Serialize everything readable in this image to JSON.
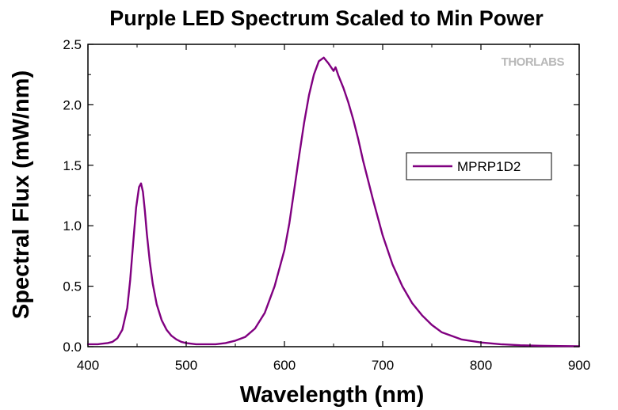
{
  "chart_data": {
    "type": "line",
    "title": "Purple LED Spectrum Scaled to Min Power",
    "xlabel": "Wavelength (nm)",
    "ylabel": "Spectral Flux (mW/nm)",
    "xlim": [
      400,
      900
    ],
    "ylim": [
      0,
      2.5
    ],
    "xticks": [
      400,
      500,
      600,
      700,
      800,
      900
    ],
    "yticks": [
      0.0,
      0.5,
      1.0,
      1.5,
      2.0,
      2.5
    ],
    "xtick_labels": [
      "400",
      "500",
      "600",
      "700",
      "800",
      "900"
    ],
    "ytick_labels": [
      "0.0",
      "0.5",
      "1.0",
      "1.5",
      "2.0",
      "2.5"
    ],
    "grid": false,
    "legend_position": "right",
    "watermark": "THORLABS",
    "series": [
      {
        "name": "MPRP1D2",
        "color": "#800080",
        "x": [
          400,
          410,
          420,
          425,
          430,
          435,
          440,
          443,
          446,
          449,
          452,
          454,
          456,
          458,
          460,
          463,
          466,
          470,
          475,
          480,
          485,
          490,
          495,
          500,
          510,
          520,
          530,
          540,
          550,
          560,
          570,
          580,
          590,
          600,
          605,
          610,
          615,
          620,
          625,
          630,
          635,
          640,
          645,
          650,
          652,
          655,
          660,
          665,
          670,
          675,
          680,
          690,
          700,
          710,
          720,
          730,
          740,
          750,
          760,
          780,
          800,
          820,
          840,
          860,
          880,
          900
        ],
        "y": [
          0.02,
          0.02,
          0.03,
          0.04,
          0.07,
          0.14,
          0.32,
          0.55,
          0.85,
          1.15,
          1.32,
          1.35,
          1.28,
          1.12,
          0.93,
          0.7,
          0.52,
          0.35,
          0.22,
          0.14,
          0.09,
          0.06,
          0.04,
          0.03,
          0.02,
          0.02,
          0.02,
          0.03,
          0.05,
          0.08,
          0.15,
          0.28,
          0.5,
          0.8,
          1.02,
          1.3,
          1.58,
          1.85,
          2.08,
          2.25,
          2.36,
          2.39,
          2.34,
          2.28,
          2.31,
          2.24,
          2.14,
          2.02,
          1.88,
          1.72,
          1.54,
          1.22,
          0.92,
          0.68,
          0.5,
          0.36,
          0.26,
          0.18,
          0.12,
          0.06,
          0.035,
          0.02,
          0.012,
          0.008,
          0.005,
          0.004
        ]
      }
    ]
  }
}
